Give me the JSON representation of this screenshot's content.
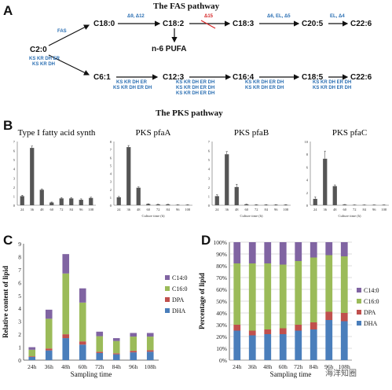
{
  "panelA": {
    "letter": "A",
    "title": "The FAS pathway",
    "root": "C2:0",
    "root_enzyme": "FAS",
    "root_enzyme2": [
      "KS KR DH ER",
      "KS KR DH"
    ],
    "top_nodes": [
      "C18:0",
      "C18:2",
      "C18:3",
      "C20:5",
      "C22:6"
    ],
    "top_enzymes": [
      "Δ9, Δ12",
      "Δ15",
      "Δ6, EL, Δ5",
      "EL, Δ4"
    ],
    "branch_label": "n-6 PUFA",
    "bottom_nodes": [
      "C6:1",
      "C12:3",
      "C16:4",
      "C18:5",
      "C22:6"
    ],
    "bottom_enzymes": [
      [
        "KS KR DH ER",
        "KS KR DH ER DH"
      ],
      [
        "KS KR DH ER DH",
        "KS KR DH ER DH",
        "KS KR DH ER DH"
      ],
      [
        "KS KR DH ER DH",
        "KS KR DH ER DH"
      ],
      [
        "KS KR DH ER DH",
        "KS KR DH ER DH"
      ]
    ],
    "colors": {
      "enzyme": "#2b6fb3",
      "blocked": "#d62728"
    }
  },
  "panelB": {
    "letter": "B",
    "title": "The PKS pathway"
  },
  "panelC": {
    "letter": "C"
  },
  "panelD": {
    "letter": "D"
  },
  "watermark": "海洋知圈",
  "chart_data": [
    {
      "type": "bar",
      "title": "Type I fatty acid synth",
      "categories": [
        "24",
        "36",
        "48",
        "60",
        "72",
        "84",
        "96",
        "108"
      ],
      "values": [
        1.0,
        6.3,
        1.7,
        0.3,
        0.75,
        0.75,
        0.6,
        0.8
      ],
      "errors": [
        0.1,
        0.2,
        0.1,
        0.05,
        0.08,
        0.1,
        0.1,
        0.08
      ],
      "ylim": [
        0,
        7
      ],
      "yticks": [
        0,
        1,
        2,
        3,
        4,
        5,
        6,
        7
      ],
      "xlabel": ""
    },
    {
      "type": "bar",
      "title": "PKS pfaA",
      "categories": [
        "24",
        "36",
        "48",
        "60",
        "72",
        "84",
        "96",
        "108"
      ],
      "values": [
        1.0,
        7.3,
        2.2,
        0.15,
        0.1,
        0.1,
        0.05,
        0.05
      ],
      "errors": [
        0.1,
        0.2,
        0.1,
        0.03,
        0.02,
        0.02,
        0.01,
        0.01
      ],
      "ylim": [
        0,
        8
      ],
      "yticks": [
        0,
        1,
        2,
        3,
        4,
        5,
        6,
        7,
        8
      ],
      "xlabel": "Culture time (h)"
    },
    {
      "type": "bar",
      "title": "PKS pfaB",
      "categories": [
        "24",
        "36",
        "48",
        "60",
        "72",
        "84",
        "96",
        "108"
      ],
      "values": [
        1.0,
        5.6,
        2.0,
        0.1,
        0.05,
        0.05,
        0.05,
        0.05
      ],
      "errors": [
        0.15,
        0.3,
        0.3,
        0.02,
        0.01,
        0.01,
        0.01,
        0.01
      ],
      "ylim": [
        0,
        7
      ],
      "yticks": [
        0,
        1,
        2,
        3,
        4,
        5,
        6,
        7
      ],
      "xlabel": "Culture time (h)"
    },
    {
      "type": "bar",
      "title": "PKS pfaC",
      "categories": [
        "24",
        "36",
        "48",
        "60",
        "72",
        "84",
        "96",
        "108"
      ],
      "values": [
        1.0,
        7.3,
        3.0,
        0.1,
        0.05,
        0.05,
        0.05,
        0.05
      ],
      "errors": [
        0.3,
        1.2,
        0.2,
        0.02,
        0.01,
        0.01,
        0.01,
        0.01
      ],
      "ylim": [
        0,
        10
      ],
      "yticks": [
        0,
        2,
        4,
        6,
        8,
        10
      ],
      "xlabel": "Culture time (h)"
    },
    {
      "type": "bar",
      "stacked": true,
      "categories": [
        "24h",
        "36h",
        "48h",
        "60h",
        "72h",
        "84h",
        "96h",
        "108h"
      ],
      "series": [
        {
          "name": "DHA",
          "color": "#4a7ebb",
          "values": [
            0.25,
            0.75,
            1.7,
            1.2,
            0.55,
            0.45,
            0.6,
            0.65
          ]
        },
        {
          "name": "DPA",
          "color": "#c0504d",
          "values": [
            0.05,
            0.15,
            0.3,
            0.25,
            0.1,
            0.08,
            0.12,
            0.12
          ]
        },
        {
          "name": "C16:0",
          "color": "#9bbb59",
          "values": [
            0.5,
            2.3,
            4.7,
            3.0,
            1.2,
            0.95,
            1.1,
            1.05
          ]
        },
        {
          "name": "C14:0",
          "color": "#8064a2",
          "values": [
            0.2,
            0.7,
            1.5,
            1.1,
            0.35,
            0.22,
            0.28,
            0.28
          ]
        }
      ],
      "ylim": [
        0,
        9
      ],
      "yticks": [
        0,
        1,
        2,
        3,
        4,
        5,
        6,
        7,
        8,
        9
      ],
      "xlabel": "Sampling time",
      "ylabel": "Relative content of lipid",
      "legend": "right"
    },
    {
      "type": "bar",
      "stacked": true,
      "categories": [
        "24h",
        "36h",
        "48h",
        "60h",
        "72h",
        "84h",
        "96h",
        "108h"
      ],
      "series": [
        {
          "name": "DHA",
          "color": "#4a7ebb",
          "values": [
            25,
            21,
            22,
            22,
            25,
            26,
            34,
            33
          ]
        },
        {
          "name": "DPA",
          "color": "#c0504d",
          "values": [
            5,
            4,
            4,
            5,
            5,
            6,
            7,
            7
          ]
        },
        {
          "name": "C16:0",
          "color": "#9bbb59",
          "values": [
            52,
            57,
            56,
            54,
            54,
            55,
            48,
            48
          ]
        },
        {
          "name": "C14:0",
          "color": "#8064a2",
          "values": [
            18,
            18,
            18,
            19,
            16,
            13,
            11,
            12
          ]
        }
      ],
      "ylim": [
        0,
        100
      ],
      "yticks": [
        "0%",
        "10%",
        "20%",
        "30%",
        "40%",
        "50%",
        "60%",
        "70%",
        "80%",
        "90%",
        "100%"
      ],
      "xlabel": "Sampling time",
      "ylabel": "Percentage of lipid",
      "legend": "right"
    }
  ]
}
